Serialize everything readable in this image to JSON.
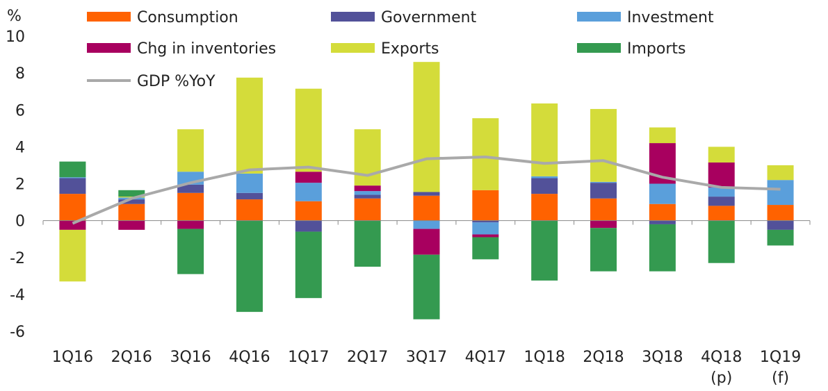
{
  "chart_data": {
    "type": "bar",
    "stacked": true,
    "y_unit_label": "%",
    "ylim": [
      -6,
      10
    ],
    "y_ticks": [
      "10",
      "8",
      "6",
      "4",
      "2",
      "0",
      "-2",
      "-4",
      "-6"
    ],
    "categories": [
      [
        "1Q16"
      ],
      [
        "2Q16"
      ],
      [
        "3Q16"
      ],
      [
        "4Q16"
      ],
      [
        "1Q17"
      ],
      [
        "2Q17"
      ],
      [
        "3Q17"
      ],
      [
        "4Q17"
      ],
      [
        "1Q18"
      ],
      [
        "2Q18"
      ],
      [
        "3Q18"
      ],
      [
        "4Q18",
        "(p)"
      ],
      [
        "1Q19",
        "(f)"
      ]
    ],
    "series": [
      {
        "name": "Consumption",
        "color": "#ff6200",
        "values": [
          1.45,
          0.9,
          1.5,
          1.15,
          1.05,
          1.2,
          1.35,
          1.65,
          1.45,
          1.2,
          0.9,
          0.8,
          0.85
        ]
      },
      {
        "name": "Government",
        "color": "#525199",
        "values": [
          0.85,
          0.25,
          0.45,
          0.35,
          -0.6,
          0.2,
          0.2,
          -0.1,
          0.85,
          0.85,
          -0.2,
          0.5,
          -0.5
        ]
      },
      {
        "name": "Investment",
        "color": "#5a9fdb",
        "values": [
          0.05,
          0.1,
          0.7,
          1.05,
          1.0,
          0.2,
          -0.45,
          -0.65,
          0.1,
          0.05,
          1.1,
          0.5,
          1.35
        ]
      },
      {
        "name": "Chg in inventories",
        "color": "#a8005f",
        "values": [
          -0.5,
          -0.5,
          -0.45,
          0.0,
          0.6,
          0.3,
          -1.4,
          -0.15,
          0.0,
          -0.4,
          2.2,
          1.35,
          0.0
        ]
      },
      {
        "name": "Exports",
        "color": "#d4dc3a",
        "values": [
          -2.8,
          0.05,
          2.3,
          5.2,
          4.5,
          3.05,
          7.05,
          3.9,
          3.95,
          3.95,
          0.85,
          0.85,
          0.8
        ]
      },
      {
        "name": "Imports",
        "color": "#349a50",
        "values": [
          0.85,
          0.35,
          -2.45,
          -4.95,
          -3.6,
          -2.5,
          -3.5,
          -1.2,
          -3.25,
          -2.35,
          -2.55,
          -2.3,
          -0.85
        ]
      }
    ],
    "line": {
      "name": "GDP %YoY",
      "color": "#a9a9a9",
      "values": [
        -0.15,
        1.2,
        2.05,
        2.75,
        2.9,
        2.45,
        3.35,
        3.45,
        3.1,
        3.25,
        2.35,
        1.8,
        1.7
      ]
    },
    "legend_placement": "top",
    "grid": false
  }
}
